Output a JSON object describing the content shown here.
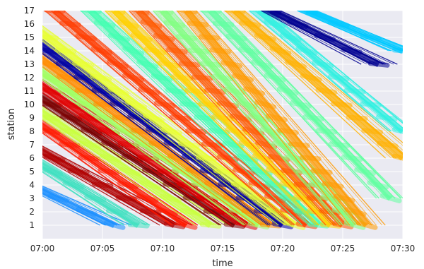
{
  "chart_data": {
    "type": "line",
    "title": "",
    "xlabel": "time",
    "ylabel": "station",
    "xlim": [
      "07:00",
      "07:30"
    ],
    "ylim": [
      0,
      17
    ],
    "x_ticks": [
      "07:00",
      "07:05",
      "07:10",
      "07:15",
      "07:20",
      "07:25",
      "07:30"
    ],
    "y_ticks": [
      1,
      2,
      3,
      4,
      5,
      6,
      7,
      8,
      9,
      10,
      11,
      12,
      13,
      14,
      15,
      16,
      17
    ],
    "grid": true,
    "legend": "none",
    "series": [
      {
        "color": "#1e90ff",
        "start_time": "06:59",
        "start_station": 4,
        "end_time": "07:06",
        "end_station": 1
      },
      {
        "color": "#3fe0c0",
        "start_time": "06:59",
        "start_station": 6,
        "end_time": "07:08",
        "end_station": 1
      },
      {
        "color": "#b00000",
        "start_time": "06:59",
        "start_station": 7,
        "end_time": "07:11",
        "end_station": 1
      },
      {
        "color": "#ff1a00",
        "start_time": "06:59",
        "start_station": 9,
        "end_time": "07:12",
        "end_station": 1
      },
      {
        "color": "#c8ff3c",
        "start_time": "06:59",
        "start_station": 10,
        "end_time": "07:14",
        "end_station": 1
      },
      {
        "color": "#7a0000",
        "start_time": "06:59",
        "start_station": 11,
        "end_time": "07:16",
        "end_station": 1
      },
      {
        "color": "#e00000",
        "start_time": "06:59",
        "start_station": 12,
        "end_time": "07:17",
        "end_station": 1
      },
      {
        "color": "#a0ff60",
        "start_time": "06:59",
        "start_station": 13,
        "end_time": "07:18",
        "end_station": 1
      },
      {
        "color": "#ff8c00",
        "start_time": "06:59",
        "start_station": 14,
        "end_time": "07:19",
        "end_station": 1
      },
      {
        "color": "#0000a0",
        "start_time": "06:59",
        "start_station": 15,
        "end_time": "07:20",
        "end_station": 1
      },
      {
        "color": "#e8ff30",
        "start_time": "06:59",
        "start_station": 16,
        "end_time": "07:21",
        "end_station": 1
      },
      {
        "color": "#ff3c00",
        "start_time": "07:01",
        "start_station": 17,
        "end_time": "07:22",
        "end_station": 1
      },
      {
        "color": "#40ffb0",
        "start_time": "07:04",
        "start_station": 17,
        "end_time": "07:23",
        "end_station": 1
      },
      {
        "color": "#ffd000",
        "start_time": "07:06",
        "start_station": 17,
        "end_time": "07:24",
        "end_station": 1
      },
      {
        "color": "#ff5a00",
        "start_time": "07:08",
        "start_station": 17,
        "end_time": "07:25",
        "end_station": 1
      },
      {
        "color": "#80ff80",
        "start_time": "07:10",
        "start_station": 17,
        "end_time": "07:26",
        "end_station": 1
      },
      {
        "color": "#ff9a00",
        "start_time": "07:12",
        "start_station": 17,
        "end_time": "07:27",
        "end_station": 1
      },
      {
        "color": "#60ffa0",
        "start_time": "07:14",
        "start_station": 17,
        "end_time": "07:29",
        "end_station": 3
      },
      {
        "color": "#ffb000",
        "start_time": "07:16",
        "start_station": 17,
        "end_time": "07:30",
        "end_station": 6
      },
      {
        "color": "#30f0e0",
        "start_time": "07:18",
        "start_station": 17,
        "end_time": "07:30",
        "end_station": 8
      },
      {
        "color": "#000090",
        "start_time": "07:19",
        "start_station": 17,
        "end_time": "07:28",
        "end_station": 13
      },
      {
        "color": "#00c8ff",
        "start_time": "07:22",
        "start_station": 17,
        "end_time": "07:30",
        "end_station": 14
      }
    ]
  }
}
